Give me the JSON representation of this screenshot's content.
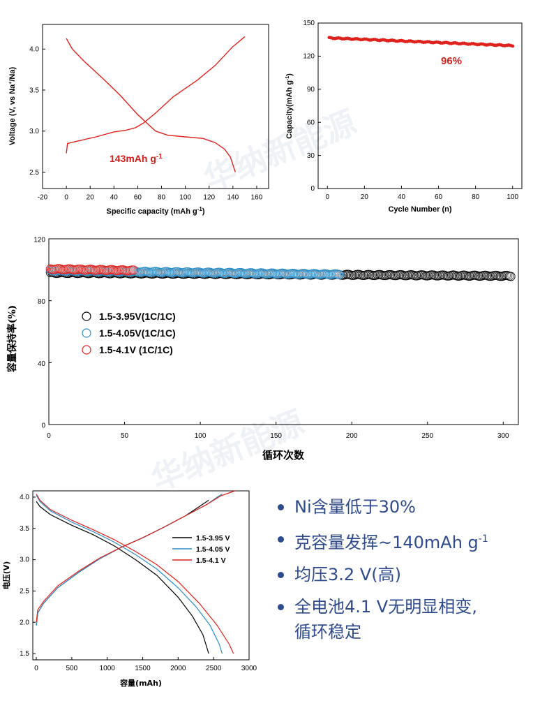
{
  "watermark": "华纳新能源",
  "bullets": {
    "b1": "Ni含量低于30%",
    "b2_main": "克容量发挥~140mAh g",
    "b2_sup": "-1",
    "b3": "均压3.2 V(高)",
    "b4_line1": "全电池4.1 V无明显相变,",
    "b4_line2": "循环稳定"
  },
  "colors": {
    "red": "#e0201b",
    "black": "#000000",
    "blue": "#2a8ec9",
    "accent_text": "#2e4b8e"
  },
  "chart_data": [
    {
      "id": "charge-discharge",
      "type": "line",
      "xlabel": "Specific capacity (mAh g",
      "xlabel_sup": "-1",
      "xlabel_end": ")",
      "ylabel_a": "Voltage (V, vs Na",
      "ylabel_sup": "+",
      "ylabel_b": "/Na)",
      "xlim": [
        -20,
        170
      ],
      "ylim": [
        2.3,
        4.3
      ],
      "xticks": [
        -20,
        0,
        20,
        40,
        60,
        80,
        100,
        120,
        140,
        160
      ],
      "yticks": [
        2.5,
        3.0,
        3.5,
        4.0
      ],
      "annotation_main": "143mAh g",
      "annotation_sup": "-1",
      "series": [
        {
          "role": "charge",
          "color": "#e0201b",
          "x": [
            0,
            1,
            10,
            25,
            40,
            50,
            58,
            65,
            75,
            90,
            110,
            125,
            140,
            150
          ],
          "y": [
            2.73,
            2.85,
            2.88,
            2.93,
            2.99,
            3.01,
            3.04,
            3.1,
            3.22,
            3.42,
            3.62,
            3.8,
            4.03,
            4.15
          ]
        },
        {
          "role": "discharge",
          "color": "#e0201b",
          "x": [
            0,
            5,
            15,
            30,
            45,
            60,
            75,
            85,
            100,
            115,
            125,
            133,
            138,
            142
          ],
          "y": [
            4.13,
            4.0,
            3.85,
            3.65,
            3.44,
            3.2,
            3.0,
            2.95,
            2.93,
            2.91,
            2.86,
            2.78,
            2.68,
            2.5
          ]
        }
      ]
    },
    {
      "id": "cycle-capacity",
      "type": "scatter",
      "xlabel": "Cycle Number (n)",
      "ylabel": "Capacity(mAh g",
      "ylabel_sup": "-1",
      "ylabel_end": ")",
      "xlim": [
        -5,
        105
      ],
      "ylim": [
        0,
        150
      ],
      "xticks": [
        0,
        20,
        40,
        60,
        80,
        100
      ],
      "yticks": [
        0,
        30,
        60,
        90,
        120,
        150
      ],
      "annotation": "96%",
      "series": [
        {
          "color": "#e0201b",
          "x_start": 1,
          "x_end": 100,
          "y_start": 136.5,
          "y_end": 129.5
        }
      ]
    },
    {
      "id": "retention",
      "type": "scatter",
      "xlabel": "循环次数",
      "ylabel": "容量保持率(%)",
      "xlim": [
        0,
        310
      ],
      "ylim": [
        0,
        120
      ],
      "xticks": [
        0,
        50,
        100,
        150,
        200,
        250,
        300
      ],
      "yticks": [
        0,
        40,
        80,
        120
      ],
      "series": [
        {
          "name": "1.5-3.95V(1C/1C)",
          "color": "#000000",
          "x_start": 1,
          "x_end": 305,
          "y_start": 98.0,
          "y_end": 96.0
        },
        {
          "name": "1.5-4.05V(1C/1C)",
          "color": "#2a8ec9",
          "x_start": 1,
          "x_end": 192,
          "y_start": 99.5,
          "y_end": 97.0
        },
        {
          "name": "1.5-4.1V (1C/1C)",
          "color": "#e0201b",
          "x_start": 1,
          "x_end": 56,
          "y_start": 100.5,
          "y_end": 99.5
        }
      ]
    },
    {
      "id": "full-cell",
      "type": "line",
      "xlabel": "容量(mAh)",
      "ylabel": "电压(V)",
      "xlim": [
        -50,
        3000
      ],
      "ylim": [
        1.4,
        4.1
      ],
      "xticks": [
        0,
        500,
        1000,
        1500,
        2000,
        2500,
        3000
      ],
      "yticks": [
        1.5,
        2.0,
        2.5,
        3.0,
        3.5,
        4.0
      ],
      "series": [
        {
          "name": "1.5-3.95 V",
          "color": "#000000",
          "charge": {
            "x": [
              0,
              20,
              100,
              300,
              600,
              900,
              1200,
              1500,
              1800,
              2100,
              2300,
              2430
            ],
            "y": [
              1.95,
              2.15,
              2.3,
              2.55,
              2.8,
              3.02,
              3.2,
              3.35,
              3.52,
              3.7,
              3.85,
              3.95
            ]
          },
          "discharge": {
            "x": [
              0,
              50,
              200,
              500,
              800,
              1100,
              1400,
              1700,
              2000,
              2200,
              2350,
              2430
            ],
            "y": [
              3.93,
              3.85,
              3.72,
              3.55,
              3.4,
              3.22,
              3.0,
              2.75,
              2.4,
              2.1,
              1.8,
              1.5
            ]
          }
        },
        {
          "name": "1.5-4.05 V",
          "color": "#2a8ec9",
          "charge": {
            "x": [
              0,
              20,
              100,
              300,
              600,
              900,
              1200,
              1500,
              1800,
              2100,
              2400,
              2550,
              2620
            ],
            "y": [
              1.95,
              2.15,
              2.3,
              2.55,
              2.8,
              3.02,
              3.2,
              3.35,
              3.52,
              3.7,
              3.88,
              4.0,
              4.05
            ]
          },
          "discharge": {
            "x": [
              0,
              50,
              200,
              500,
              800,
              1100,
              1400,
              1700,
              2000,
              2250,
              2450,
              2580,
              2620
            ],
            "y": [
              4.03,
              3.93,
              3.78,
              3.6,
              3.45,
              3.28,
              3.08,
              2.85,
              2.55,
              2.25,
              1.95,
              1.65,
              1.5
            ]
          }
        },
        {
          "name": "1.5-4.1 V",
          "color": "#e0201b",
          "charge": {
            "x": [
              0,
              20,
              100,
              300,
              600,
              900,
              1200,
              1500,
              1800,
              2100,
              2400,
              2600,
              2800
            ],
            "y": [
              2.0,
              2.2,
              2.33,
              2.58,
              2.82,
              3.03,
              3.2,
              3.35,
              3.52,
              3.7,
              3.88,
              4.02,
              4.1
            ]
          },
          "discharge": {
            "x": [
              0,
              50,
              200,
              500,
              800,
              1100,
              1400,
              1700,
              2000,
              2300,
              2550,
              2720,
              2780
            ],
            "y": [
              4.05,
              3.95,
              3.8,
              3.63,
              3.48,
              3.32,
              3.13,
              2.92,
              2.65,
              2.3,
              1.95,
              1.65,
              1.5
            ]
          }
        }
      ]
    }
  ]
}
